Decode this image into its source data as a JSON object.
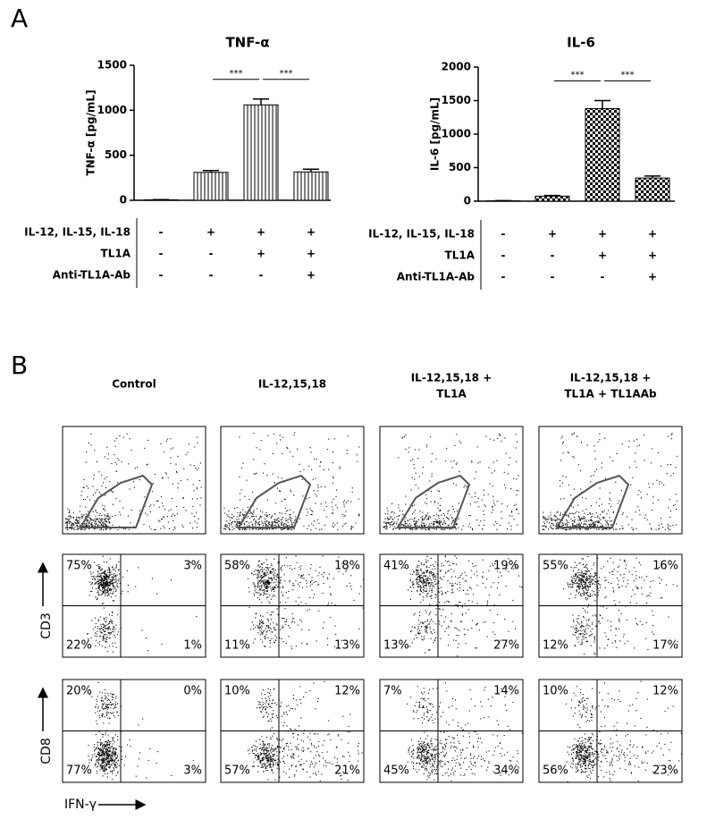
{
  "panel_a_label": "A",
  "chart_data": [
    {
      "type": "bar",
      "title": "TNF-α",
      "y_label": "TNF-α [pg/mL]",
      "fill_pattern": "stripes",
      "categories": [
        null,
        null,
        null,
        null
      ],
      "values": [
        5,
        310,
        1060,
        315
      ],
      "errors": [
        3,
        20,
        65,
        30
      ],
      "ylim": [
        0,
        1500
      ],
      "yticks": [
        0,
        500,
        1000,
        1500
      ],
      "annotations": [
        "***",
        "***"
      ],
      "conditions": [
        {
          "label": "IL-12, IL-15, IL-18",
          "marks": [
            "-",
            "+",
            "+",
            "+"
          ]
        },
        {
          "label": "TL1A",
          "marks": [
            "-",
            "-",
            "+",
            "+"
          ]
        },
        {
          "label": "Anti-TL1A-Ab",
          "marks": [
            "-",
            "-",
            "-",
            "+"
          ]
        }
      ]
    },
    {
      "type": "bar",
      "title": "IL-6",
      "y_label": "IL-6 [pg/mL]",
      "fill_pattern": "checker",
      "categories": [
        null,
        null,
        null,
        null
      ],
      "values": [
        5,
        75,
        1380,
        345
      ],
      "errors": [
        3,
        10,
        120,
        30
      ],
      "ylim": [
        0,
        2000
      ],
      "yticks": [
        0,
        500,
        1000,
        1500,
        2000
      ],
      "annotations": [
        "***",
        "***"
      ],
      "conditions": [
        {
          "label": "IL-12, IL-15, IL-18",
          "marks": [
            "-",
            "+",
            "+",
            "+"
          ]
        },
        {
          "label": "TL1A",
          "marks": [
            "-",
            "-",
            "+",
            "+"
          ]
        },
        {
          "label": "Anti-TL1A-Ab",
          "marks": [
            "-",
            "-",
            "-",
            "+"
          ]
        }
      ]
    }
  ],
  "panel_b": {
    "label": "B",
    "columns": [
      [
        "Control"
      ],
      [
        "IL-12,15,18"
      ],
      [
        "IL-12,15,18 +",
        "TL1A"
      ],
      [
        "IL-12,15,18 +",
        "TL1A + TL1AAb"
      ]
    ],
    "rows": [
      {
        "y_label": "CD3",
        "quadrants": [
          [
            "75%",
            "3%",
            "22%",
            "1%"
          ],
          [
            "58%",
            "18%",
            "11%",
            "13%"
          ],
          [
            "41%",
            "19%",
            "13%",
            "27%"
          ],
          [
            "55%",
            "16%",
            "12%",
            "17%"
          ]
        ]
      },
      {
        "y_label": "CD8",
        "quadrants": [
          [
            "20%",
            "0%",
            "77%",
            "3%"
          ],
          [
            "10%",
            "12%",
            "57%",
            "21%"
          ],
          [
            "7%",
            "14%",
            "45%",
            "34%"
          ],
          [
            "10%",
            "12%",
            "56%",
            "23%"
          ]
        ]
      }
    ],
    "x_label": "IFN-γ"
  }
}
